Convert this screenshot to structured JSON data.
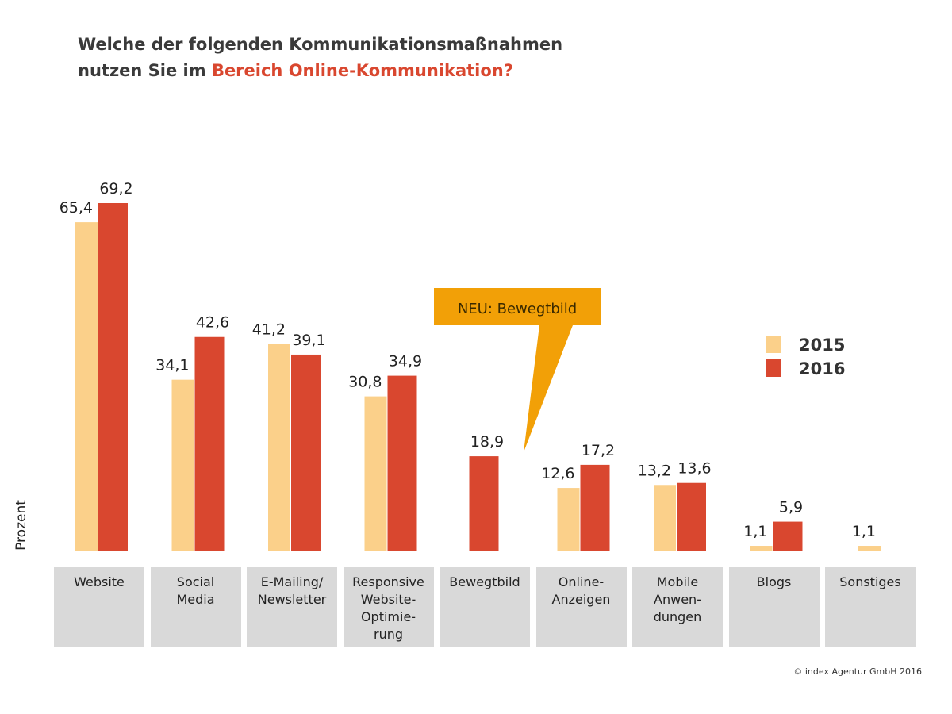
{
  "chart_data": {
    "type": "bar",
    "title": {
      "line1": "Welche der folgenden Kommunikationsmaßnahmen",
      "line2": "nutzen Sie im",
      "highlight": "Bereich Online-Kommunikation?"
    },
    "ylabel": "Prozent",
    "categories": [
      "Website",
      "Social\nMedia",
      "E-Mailing/\nNewsletter",
      "Responsive\nWebsite-\nOptimie-\nrung",
      "Bewegtbild",
      "Online-\nAnzeigen",
      "Mobile\nAnwen-\ndungen",
      "Blogs",
      "Sonstiges"
    ],
    "series": [
      {
        "name": "2015",
        "color": "#fbd08a",
        "values": [
          65.4,
          34.1,
          41.2,
          30.8,
          null,
          12.6,
          13.2,
          1.1,
          1.1
        ],
        "value_labels": [
          "65,4",
          "34,1",
          "41,2",
          "30,8",
          null,
          "12,6",
          "13,2",
          "1,1",
          "1,1"
        ]
      },
      {
        "name": "2016",
        "color": "#d9472f",
        "values": [
          69.2,
          42.6,
          39.1,
          34.9,
          18.9,
          17.2,
          13.6,
          5.9,
          null
        ],
        "value_labels": [
          "69,2",
          "42,6",
          "39,1",
          "34,9",
          "18,9",
          "17,2",
          "13,6",
          "5,9",
          null
        ]
      }
    ],
    "annotation": "NEU:  Bewegtbild",
    "legend": "right",
    "source": "© index Agentur GmbH 2016"
  }
}
